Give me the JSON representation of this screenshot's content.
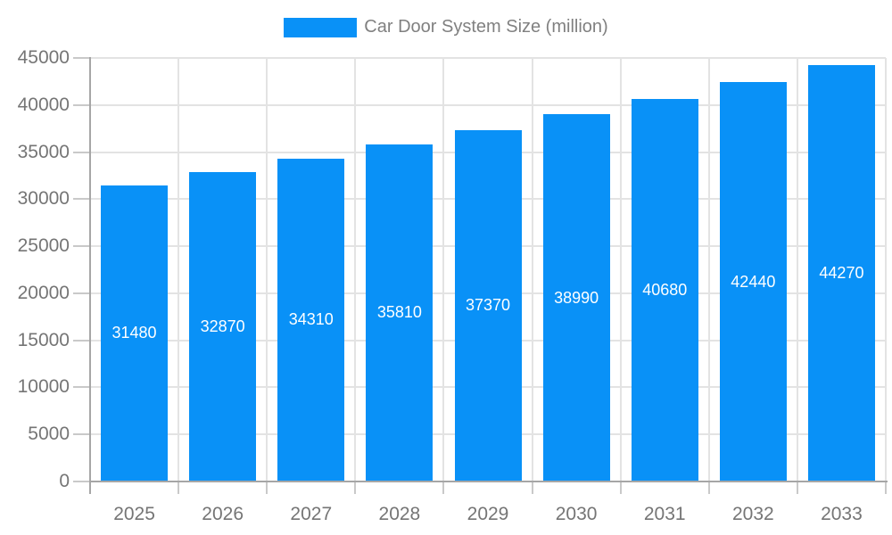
{
  "chart_data": {
    "type": "bar",
    "legend": "Car Door System Size (million)",
    "categories": [
      "2025",
      "2026",
      "2027",
      "2028",
      "2029",
      "2030",
      "2031",
      "2032",
      "2033"
    ],
    "values": [
      31480,
      32870,
      34310,
      35810,
      37370,
      38990,
      40680,
      42440,
      44270
    ],
    "ylim": [
      0,
      45000
    ],
    "ytick_step": 5000,
    "yticks": [
      "0",
      "5000",
      "10000",
      "15000",
      "20000",
      "25000",
      "30000",
      "35000",
      "40000",
      "45000"
    ],
    "grid": true,
    "legend_position": "top-center",
    "bar_label_position": "inside-center",
    "colors": {
      "bar": "#0991f7",
      "bar_label": "#ffffff",
      "axis_line": "#a6a6a6",
      "grid_line": "#e3e3e3",
      "tick": "#c9c9c9",
      "axis_label": "#757575",
      "legend_label": "#808080",
      "background": "#ffffff"
    }
  }
}
